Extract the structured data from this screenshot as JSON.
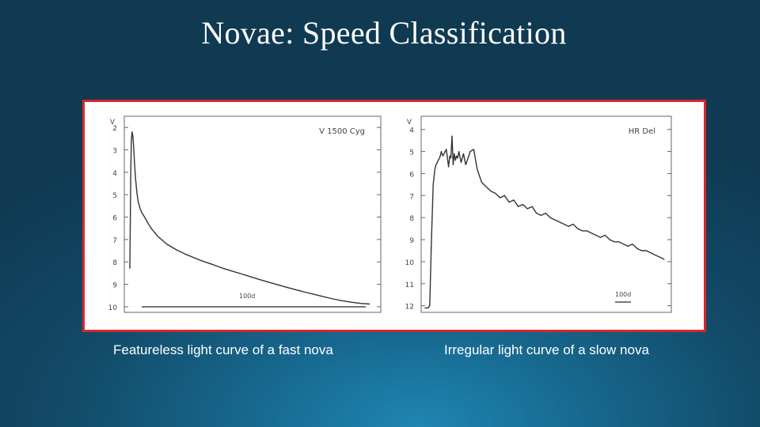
{
  "slide": {
    "title": "Novae:  Speed Classification",
    "caption_left": "Featureless light curve of a fast nova",
    "caption_right": "Irregular light curve of a slow nova",
    "frame_color": "#d8262a"
  },
  "chart_data": [
    {
      "type": "line",
      "title": "V 1500 Cyg",
      "ylabel": "V",
      "xlabel": "",
      "scale_bar_label": "100d",
      "ylim": [
        10.25,
        1.5
      ],
      "yticks": [
        2,
        3,
        4,
        5,
        6,
        7,
        8,
        9,
        10
      ],
      "y_inverted": true,
      "grid": false,
      "x": [
        0,
        0.02,
        0.05,
        0.08,
        0.12,
        0.16,
        0.2,
        0.25,
        0.3,
        0.38,
        0.45,
        0.55,
        0.65,
        0.8,
        1.0,
        1.2,
        1.5,
        2.0,
        2.5,
        3.0,
        3.5,
        4.0,
        4.5,
        5.0,
        5.5,
        6.0,
        6.5,
        7.0,
        7.5,
        8.0,
        8.5,
        9.0,
        9.5,
        10.0,
        10.5,
        11.0,
        11.5,
        12.0,
        12.5,
        13.0
      ],
      "y": [
        8.3,
        6.5,
        4.0,
        2.6,
        2.2,
        2.35,
        2.8,
        3.5,
        4.2,
        4.9,
        5.3,
        5.6,
        5.8,
        6.0,
        6.3,
        6.55,
        6.85,
        7.2,
        7.45,
        7.65,
        7.82,
        7.98,
        8.12,
        8.27,
        8.4,
        8.52,
        8.65,
        8.78,
        8.9,
        9.02,
        9.13,
        9.24,
        9.35,
        9.45,
        9.55,
        9.65,
        9.73,
        9.8,
        9.85,
        9.88
      ]
    },
    {
      "type": "line",
      "title": "HR Del",
      "ylabel": "V",
      "xlabel": "",
      "scale_bar_label": "100d",
      "ylim": [
        12.3,
        3.4
      ],
      "yticks": [
        4,
        5,
        6,
        7,
        8,
        9,
        10,
        11,
        12
      ],
      "y_inverted": true,
      "grid": false,
      "x": [
        0,
        0.15,
        0.3,
        0.45,
        0.6,
        0.75,
        0.9,
        1.0,
        1.1,
        1.2,
        1.3,
        1.38,
        1.46,
        1.52,
        1.6,
        1.7,
        1.8,
        1.9,
        2.0,
        2.1,
        2.2,
        2.3,
        2.4,
        2.5,
        2.6,
        2.7,
        2.8,
        2.9,
        3.0,
        3.2,
        3.4,
        3.6,
        3.8,
        4.0,
        4.3,
        4.6,
        5.0,
        5.4,
        5.8,
        6.2,
        6.6,
        7.0,
        7.4,
        7.8,
        8.2,
        8.6,
        9.0,
        9.4,
        9.8,
        10.2,
        10.6,
        11.0,
        11.4,
        11.8,
        12.2,
        12.6,
        13.0,
        13.4,
        13.8,
        14.2,
        14.6,
        15.0,
        15.4,
        15.8,
        16.2,
        16.6,
        17.0,
        17.4,
        17.8,
        18.2,
        18.6,
        19.0,
        19.4,
        19.8,
        20.2,
        20.6,
        21.0
      ],
      "y": [
        12.1,
        12.1,
        12.1,
        12.0,
        9.0,
        6.5,
        5.8,
        5.6,
        5.5,
        5.4,
        5.3,
        5.2,
        5.0,
        5.1,
        5.2,
        5.1,
        5.0,
        4.9,
        5.3,
        5.7,
        5.2,
        5.3,
        4.3,
        5.6,
        5.1,
        5.4,
        5.2,
        5.3,
        5.0,
        5.5,
        5.1,
        5.6,
        5.3,
        5.0,
        4.9,
        5.8,
        6.4,
        6.6,
        6.8,
        6.9,
        7.1,
        7.0,
        7.3,
        7.2,
        7.5,
        7.4,
        7.6,
        7.5,
        7.8,
        7.9,
        7.8,
        8.0,
        8.1,
        8.2,
        8.3,
        8.4,
        8.3,
        8.5,
        8.6,
        8.6,
        8.7,
        8.8,
        8.9,
        8.8,
        9.0,
        9.1,
        9.1,
        9.2,
        9.3,
        9.2,
        9.4,
        9.5,
        9.5,
        9.6,
        9.7,
        9.8,
        9.9
      ]
    }
  ]
}
